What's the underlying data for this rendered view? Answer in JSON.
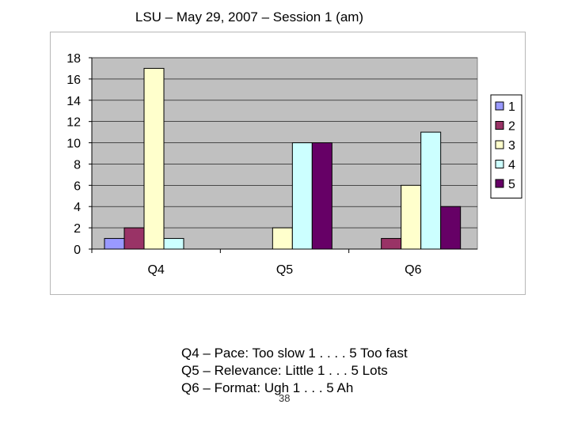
{
  "title": "LSU – May 29, 2007 – Session 1 (am)",
  "chart_data": {
    "type": "bar",
    "categories": [
      "Q4",
      "Q5",
      "Q6"
    ],
    "series": [
      {
        "name": "1",
        "color": "#9999ff",
        "values": [
          1,
          0,
          0
        ]
      },
      {
        "name": "2",
        "color": "#993366",
        "values": [
          2,
          0,
          1
        ]
      },
      {
        "name": "3",
        "color": "#ffffcc",
        "values": [
          17,
          2,
          6
        ]
      },
      {
        "name": "4",
        "color": "#ccffff",
        "values": [
          1,
          10,
          11
        ]
      },
      {
        "name": "5",
        "color": "#660066",
        "values": [
          0,
          10,
          4
        ]
      }
    ],
    "ylim": [
      0,
      18
    ],
    "yticks": [
      0,
      2,
      4,
      6,
      8,
      10,
      12,
      14,
      16,
      18
    ],
    "plot_background": "#c0c0c0",
    "grid": true,
    "legend": "right"
  },
  "notes": [
    "Q4 – Pace: Too slow 1 . . . . 5 Too fast",
    "Q5 – Relevance: Little 1 . . . 5 Lots",
    "Q6 – Format: Ugh 1 . . . 5 Ah"
  ],
  "page_number": "38"
}
